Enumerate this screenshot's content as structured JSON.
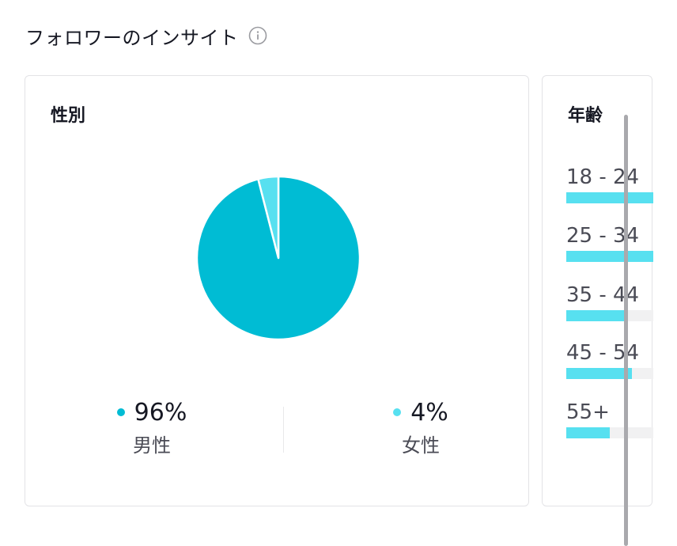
{
  "header": {
    "title": "フォロワーのインサイト",
    "info_icon": "info-icon"
  },
  "gender": {
    "title": "性別",
    "colors": {
      "male": "#00bcd4",
      "female": "#57e0f0"
    },
    "items": [
      {
        "label": "男性",
        "percent": 96,
        "display": "96%"
      },
      {
        "label": "女性",
        "percent": 4,
        "display": "4%"
      }
    ]
  },
  "age": {
    "title": "年齢",
    "bar_color": "#57e0f0",
    "items": [
      {
        "label": "18 - 24",
        "fraction": 1.0
      },
      {
        "label": "25 - 34",
        "fraction": 1.0
      },
      {
        "label": "35 - 44",
        "fraction": 0.7
      },
      {
        "label": "45 - 54",
        "fraction": 0.75
      },
      {
        "label": "55+",
        "fraction": 0.5
      }
    ]
  }
}
